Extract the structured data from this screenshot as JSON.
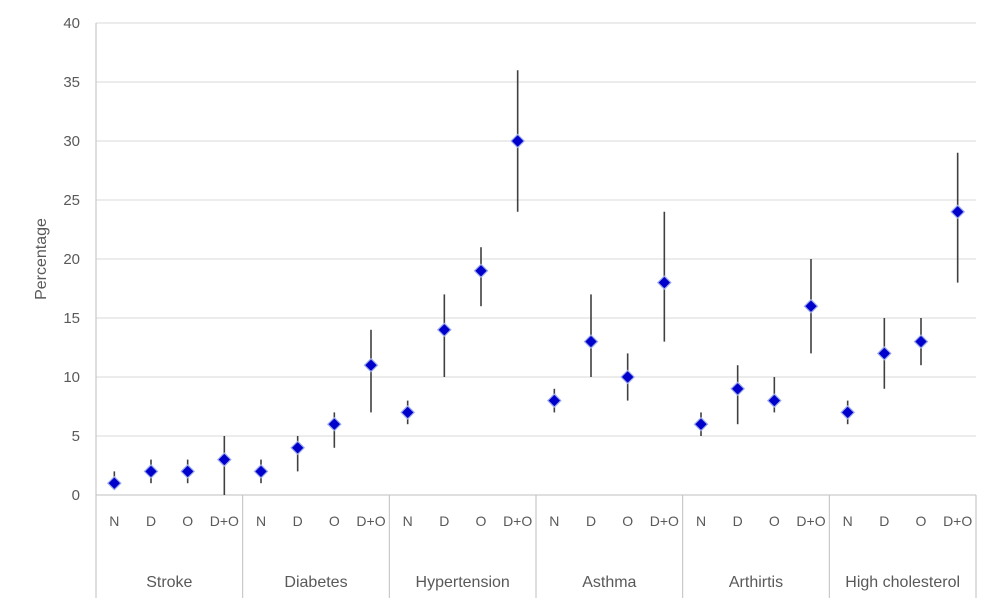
{
  "chart_data": {
    "type": "scatter",
    "ylabel": "Percentage",
    "ylim": [
      0,
      40
    ],
    "yticks": [
      0,
      5,
      10,
      15,
      20,
      25,
      30,
      35,
      40
    ],
    "subcategories": [
      "N",
      "D",
      "O",
      "D+O"
    ],
    "marker_color": "#0000CC",
    "marker_edge_color": "#9AA8E8",
    "errorbar_color": "#404040",
    "gridlines": true,
    "groups": [
      {
        "name": "Stroke",
        "values": [
          1,
          2,
          2,
          3
        ],
        "low": [
          0.5,
          1,
          1,
          0
        ],
        "high": [
          2,
          3,
          3,
          5
        ]
      },
      {
        "name": "Diabetes",
        "values": [
          2,
          4,
          6,
          11
        ],
        "low": [
          1,
          2,
          4,
          7
        ],
        "high": [
          3,
          5,
          7,
          14
        ]
      },
      {
        "name": "Hypertension",
        "values": [
          7,
          14,
          19,
          30
        ],
        "low": [
          6,
          10,
          16,
          24
        ],
        "high": [
          8,
          17,
          21,
          36
        ]
      },
      {
        "name": "Asthma",
        "values": [
          8,
          13,
          10,
          18
        ],
        "low": [
          7,
          10,
          8,
          13
        ],
        "high": [
          9,
          17,
          12,
          24
        ]
      },
      {
        "name": "Arthirtis",
        "values": [
          6,
          9,
          8,
          16
        ],
        "low": [
          5,
          6,
          7,
          12
        ],
        "high": [
          7,
          11,
          10,
          20
        ]
      },
      {
        "name": "High cholesterol",
        "values": [
          7,
          12,
          13,
          24
        ],
        "low": [
          6,
          9,
          11,
          18
        ],
        "high": [
          8,
          15,
          15,
          29
        ]
      }
    ]
  }
}
